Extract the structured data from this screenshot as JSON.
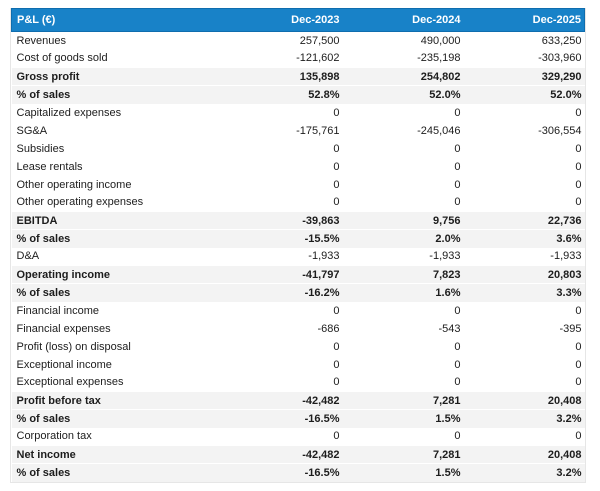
{
  "chart_data": {
    "type": "table",
    "title": "P&L (€)",
    "columns": [
      "Dec-2023",
      "Dec-2024",
      "Dec-2025"
    ],
    "rows": [
      {
        "label": "Revenues",
        "values": [
          "257,500",
          "490,000",
          "633,250"
        ],
        "emphasis": false
      },
      {
        "label": "Cost of goods sold",
        "values": [
          "-121,602",
          "-235,198",
          "-303,960"
        ],
        "emphasis": false
      },
      {
        "label": "Gross profit",
        "values": [
          "135,898",
          "254,802",
          "329,290"
        ],
        "emphasis": true
      },
      {
        "label": "% of sales",
        "values": [
          "52.8%",
          "52.0%",
          "52.0%"
        ],
        "emphasis": true
      },
      {
        "label": "Capitalized expenses",
        "values": [
          "0",
          "0",
          "0"
        ],
        "emphasis": false
      },
      {
        "label": "SG&A",
        "values": [
          "-175,761",
          "-245,046",
          "-306,554"
        ],
        "emphasis": false
      },
      {
        "label": "Subsidies",
        "values": [
          "0",
          "0",
          "0"
        ],
        "emphasis": false
      },
      {
        "label": "Lease rentals",
        "values": [
          "0",
          "0",
          "0"
        ],
        "emphasis": false
      },
      {
        "label": "Other operating income",
        "values": [
          "0",
          "0",
          "0"
        ],
        "emphasis": false
      },
      {
        "label": "Other operating expenses",
        "values": [
          "0",
          "0",
          "0"
        ],
        "emphasis": false
      },
      {
        "label": "EBITDA",
        "values": [
          "-39,863",
          "9,756",
          "22,736"
        ],
        "emphasis": true
      },
      {
        "label": "% of sales",
        "values": [
          "-15.5%",
          "2.0%",
          "3.6%"
        ],
        "emphasis": true
      },
      {
        "label": "D&A",
        "values": [
          "-1,933",
          "-1,933",
          "-1,933"
        ],
        "emphasis": false
      },
      {
        "label": "Operating income",
        "values": [
          "-41,797",
          "7,823",
          "20,803"
        ],
        "emphasis": true
      },
      {
        "label": "% of sales",
        "values": [
          "-16.2%",
          "1.6%",
          "3.3%"
        ],
        "emphasis": true
      },
      {
        "label": "Financial income",
        "values": [
          "0",
          "0",
          "0"
        ],
        "emphasis": false
      },
      {
        "label": "Financial expenses",
        "values": [
          "-686",
          "-543",
          "-395"
        ],
        "emphasis": false
      },
      {
        "label": "Profit (loss) on disposal",
        "values": [
          "0",
          "0",
          "0"
        ],
        "emphasis": false
      },
      {
        "label": "Exceptional income",
        "values": [
          "0",
          "0",
          "0"
        ],
        "emphasis": false
      },
      {
        "label": "Exceptional expenses",
        "values": [
          "0",
          "0",
          "0"
        ],
        "emphasis": false
      },
      {
        "label": "Profit before tax",
        "values": [
          "-42,482",
          "7,281",
          "20,408"
        ],
        "emphasis": true
      },
      {
        "label": "% of sales",
        "values": [
          "-16.5%",
          "1.5%",
          "3.2%"
        ],
        "emphasis": true
      },
      {
        "label": "Corporation tax",
        "values": [
          "0",
          "0",
          "0"
        ],
        "emphasis": false
      },
      {
        "label": "Net income",
        "values": [
          "-42,482",
          "7,281",
          "20,408"
        ],
        "emphasis": true
      },
      {
        "label": "% of sales",
        "values": [
          "-16.5%",
          "1.5%",
          "3.2%"
        ],
        "emphasis": true
      }
    ]
  },
  "colors": {
    "header_bg": "#1882c8",
    "header_border": "#0f6dae",
    "header_text": "#ffffff",
    "emphasis_bg": "#f3f3f3",
    "text_color": "#1d1d1d",
    "table_border": "#e6e6e6",
    "page_bg": "#ffffff"
  }
}
